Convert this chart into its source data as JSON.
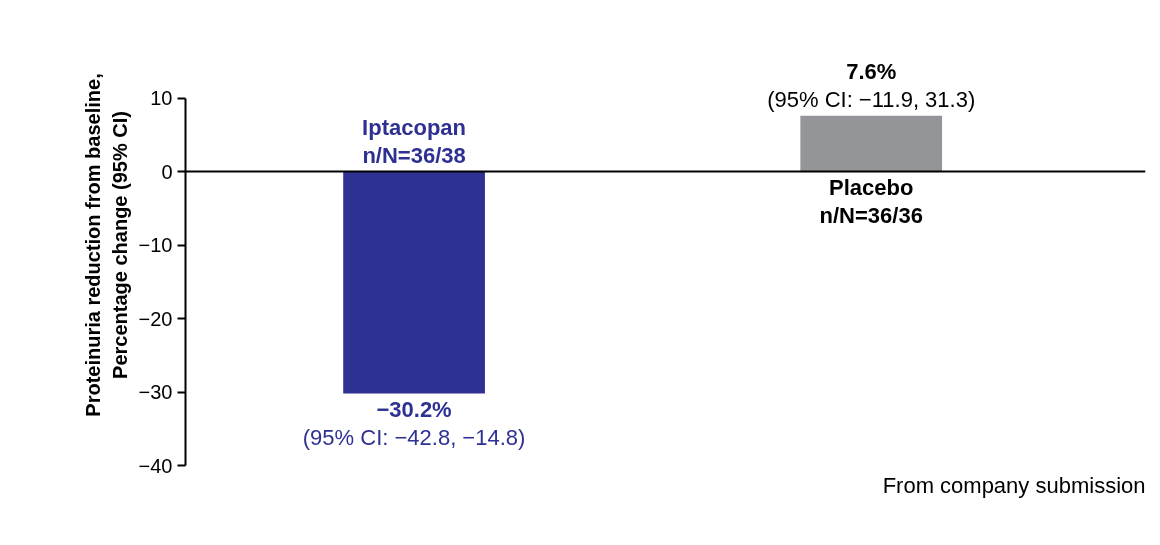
{
  "chart_data": {
    "type": "bar",
    "ylabel": "Proteinuria reduction from baseline,\nPercentage change (95% CI)",
    "categories": [
      "Iptacopan\nn/N=36/38",
      "Placebo\nn/N=36/36"
    ],
    "values": [
      -30.2,
      7.6
    ],
    "colors": [
      "#2e3192",
      "#939598"
    ],
    "value_labels": [
      "−30.2%\n(95% CI: −42.8, −14.8)",
      "7.6%\n(95% CI: −11.9, 31.3)"
    ],
    "ylim": [
      -40,
      10
    ],
    "yticks": [
      {
        "value": -40,
        "label": "−40"
      },
      {
        "value": -30,
        "label": "−30"
      },
      {
        "value": -20,
        "label": "−20"
      },
      {
        "value": -10,
        "label": "−10"
      },
      0,
      10
    ],
    "tick_labels": "y",
    "annotations": [
      "From company submission"
    ]
  }
}
